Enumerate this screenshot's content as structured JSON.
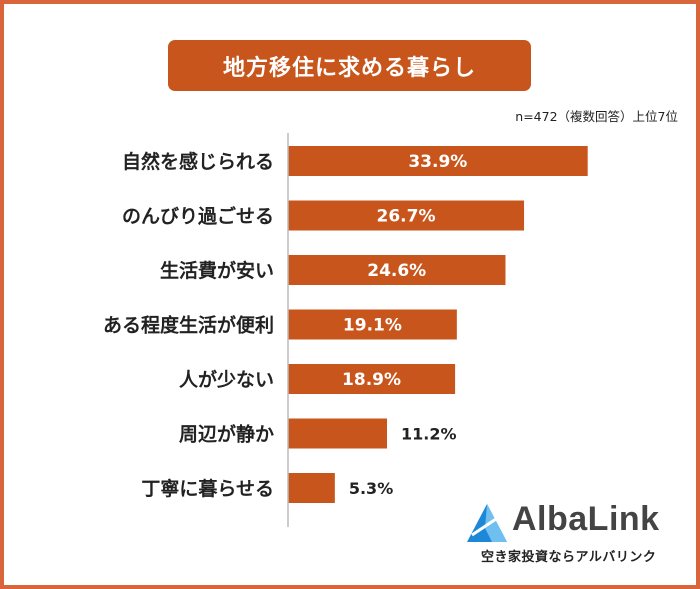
{
  "title": "地方移住に求める暮らし",
  "note": "n=472（複数回答）上位7位",
  "colors": {
    "bar": "#c8561c",
    "title_bg": "#c8561c",
    "frame": "#d9663a",
    "label_inside": "#ffffff",
    "label_outside": "#222222",
    "axis": "#bbbbbb",
    "brand_blue": "#1e88d8"
  },
  "chart_data": {
    "type": "bar",
    "orientation": "horizontal",
    "categories": [
      "自然を感じられる",
      "のんびり過ごせる",
      "生活費が安い",
      "ある程度生活が便利",
      "人が少ない",
      "周辺が静か",
      "丁寧に暮らせる"
    ],
    "values": [
      33.9,
      26.7,
      24.6,
      19.1,
      18.9,
      11.2,
      5.3
    ],
    "value_labels": [
      "33.9%",
      "26.7%",
      "24.6%",
      "19.1%",
      "18.9%",
      "11.2%",
      "5.3%"
    ],
    "unit": "%",
    "xlim": [
      0,
      34.5
    ]
  },
  "brand": {
    "logo": "albalink-logo-icon",
    "name": "AlbaLink",
    "tagline": "空き家投資ならアルバリンク"
  }
}
